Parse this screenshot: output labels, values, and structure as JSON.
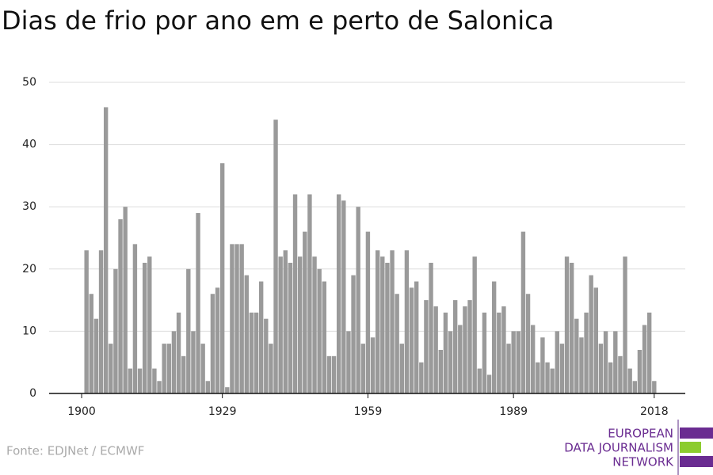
{
  "chart_data": {
    "type": "bar",
    "title": "Dias de frio por ano em e perto de Salonica",
    "source": "Fonte: EDJNet / ECMWF",
    "logo": [
      "EUROPEAN",
      "DATA JOURNALISM",
      "NETWORK"
    ],
    "color": "#9a9a9a",
    "x": [
      1901,
      1902,
      1903,
      1904,
      1905,
      1906,
      1907,
      1908,
      1909,
      1910,
      1911,
      1912,
      1913,
      1914,
      1915,
      1916,
      1917,
      1918,
      1919,
      1920,
      1921,
      1922,
      1923,
      1924,
      1925,
      1926,
      1927,
      1928,
      1929,
      1930,
      1931,
      1932,
      1933,
      1934,
      1935,
      1936,
      1937,
      1938,
      1939,
      1940,
      1941,
      1942,
      1943,
      1944,
      1945,
      1946,
      1947,
      1948,
      1949,
      1950,
      1951,
      1952,
      1953,
      1954,
      1955,
      1956,
      1957,
      1958,
      1959,
      1960,
      1961,
      1962,
      1963,
      1964,
      1965,
      1966,
      1967,
      1968,
      1969,
      1970,
      1971,
      1972,
      1973,
      1974,
      1975,
      1976,
      1977,
      1978,
      1979,
      1980,
      1981,
      1982,
      1983,
      1984,
      1985,
      1986,
      1987,
      1988,
      1989,
      1990,
      1991,
      1992,
      1993,
      1994,
      1995,
      1996,
      1997,
      1998,
      1999,
      2000,
      2001,
      2002,
      2003,
      2004,
      2005,
      2006,
      2007,
      2008,
      2009,
      2010,
      2011,
      2012,
      2013,
      2014,
      2015,
      2016,
      2017,
      2018
    ],
    "values": [
      23,
      16,
      12,
      23,
      46,
      8,
      20,
      28,
      30,
      4,
      24,
      4,
      21,
      22,
      4,
      2,
      8,
      8,
      10,
      13,
      6,
      20,
      10,
      29,
      8,
      2,
      16,
      17,
      37,
      1,
      24,
      24,
      24,
      19,
      13,
      13,
      18,
      12,
      8,
      44,
      22,
      23,
      21,
      32,
      22,
      26,
      32,
      22,
      20,
      18,
      6,
      6,
      32,
      31,
      10,
      19,
      30,
      8,
      26,
      9,
      23,
      22,
      21,
      23,
      16,
      8,
      23,
      17,
      18,
      5,
      15,
      21,
      14,
      7,
      13,
      10,
      15,
      11,
      14,
      15,
      22,
      4,
      13,
      3,
      18,
      13,
      14,
      8,
      10,
      10,
      26,
      16,
      11,
      5,
      9,
      5,
      4,
      10,
      8,
      22,
      21,
      12,
      9,
      13,
      19,
      17,
      8,
      10,
      5,
      10,
      6,
      22,
      4,
      2,
      7,
      11,
      13,
      2
    ],
    "xlim": [
      1893.3,
      2024.4
    ],
    "xticks": [
      1900,
      1929,
      1959,
      1989,
      2018
    ],
    "ylim": [
      0,
      50
    ],
    "yticks": [
      0,
      10,
      20,
      30,
      40,
      50
    ],
    "grid": true
  }
}
